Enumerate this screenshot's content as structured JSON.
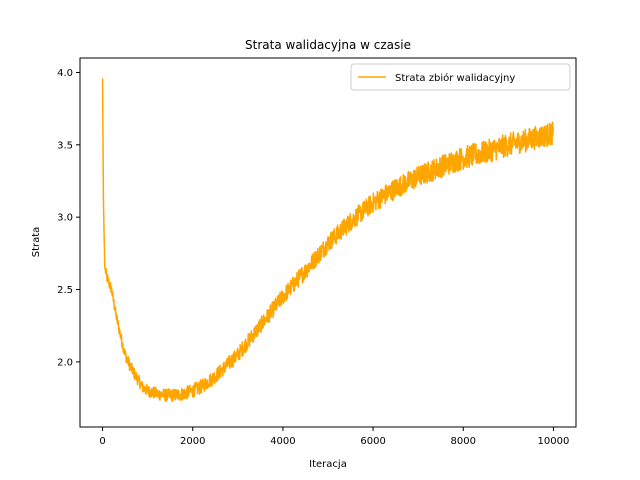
{
  "chart_data": {
    "type": "line",
    "title": "Strata walidacyjna w czasie",
    "xlabel": "Iteracja",
    "ylabel": "Strata",
    "xlim": [
      -500,
      10500
    ],
    "ylim": [
      1.55,
      4.1
    ],
    "xticks": [
      0,
      2000,
      4000,
      6000,
      8000,
      10000
    ],
    "yticks": [
      2.0,
      2.5,
      3.0,
      3.5,
      4.0
    ],
    "ytick_labels": [
      "2.0",
      "2.5",
      "3.0",
      "3.5",
      "4.0"
    ],
    "grid": false,
    "legend": {
      "position": "upper-right"
    },
    "series": [
      {
        "name": "Strata zbiór walidacyjny",
        "color": "#FFA500",
        "noise_amplitude": 0.08,
        "x": [
          0,
          20,
          50,
          100,
          200,
          300,
          400,
          500,
          600,
          700,
          800,
          900,
          1000,
          1200,
          1400,
          1600,
          1800,
          2000,
          2200,
          2500,
          3000,
          3500,
          4000,
          4500,
          5000,
          5500,
          6000,
          6500,
          7000,
          7500,
          8000,
          8500,
          9000,
          9500,
          10000
        ],
        "y": [
          3.96,
          3.1,
          2.65,
          2.58,
          2.5,
          2.32,
          2.18,
          2.05,
          1.98,
          1.92,
          1.87,
          1.82,
          1.8,
          1.78,
          1.77,
          1.77,
          1.78,
          1.8,
          1.83,
          1.9,
          2.05,
          2.25,
          2.45,
          2.63,
          2.82,
          2.97,
          3.1,
          3.2,
          3.28,
          3.35,
          3.41,
          3.45,
          3.5,
          3.54,
          3.58
        ]
      }
    ]
  }
}
